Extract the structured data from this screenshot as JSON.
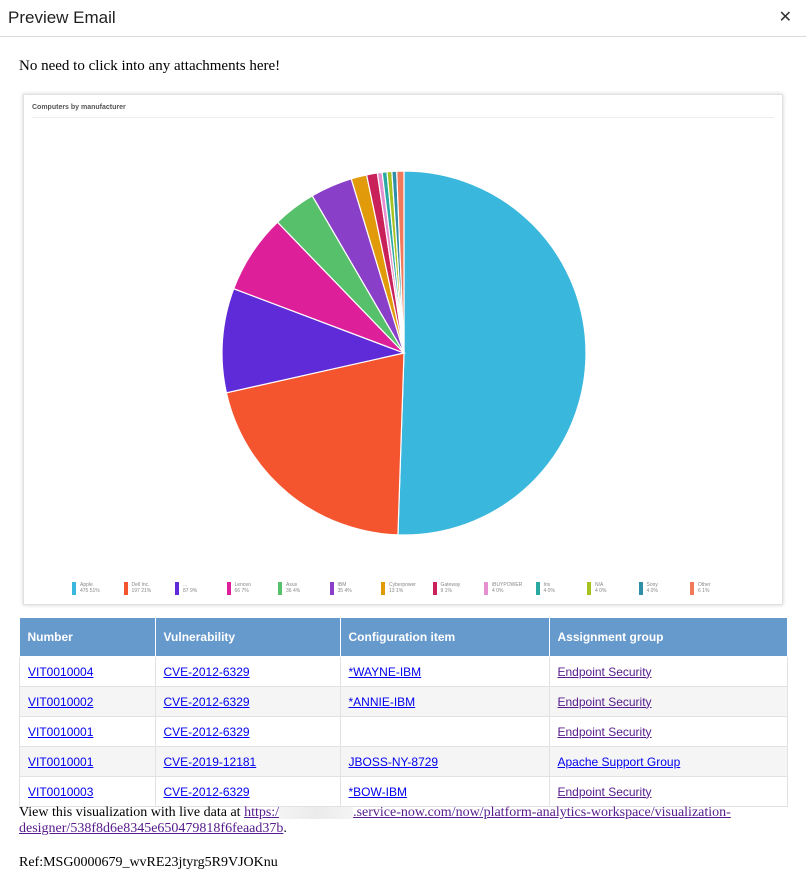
{
  "dialog": {
    "title": "Preview Email",
    "close_icon": "close-icon"
  },
  "intro_text": "No need to click into any attachments here!",
  "chart_data": {
    "type": "pie",
    "title": "Computers by manufacturer",
    "legend_position": "bottom",
    "slices": [
      {
        "name": "Apple",
        "value": 475,
        "percent": "51%",
        "color": "#3ab7dc"
      },
      {
        "name": "Dell Inc.",
        "value": 197,
        "percent": "21%",
        "color": "#f4552e"
      },
      {
        "name": "...",
        "value": 87,
        "percent": "9%",
        "color": "#5f2bd8"
      },
      {
        "name": "Lenovo",
        "value": 66,
        "percent": "7%",
        "color": "#dd1f9a"
      },
      {
        "name": "Asus",
        "value": 36,
        "percent": "4%",
        "color": "#57c06a"
      },
      {
        "name": "IBM",
        "value": 35,
        "percent": "4%",
        "color": "#8a3fc9"
      },
      {
        "name": "Cyberpower",
        "value": 13,
        "percent": "1%",
        "color": "#e09a0a"
      },
      {
        "name": "Gateway",
        "value": 9,
        "percent": "1%",
        "color": "#c9225a"
      },
      {
        "name": "iBUYPOWER",
        "value": 4,
        "percent": "0%",
        "color": "#e58fd0"
      },
      {
        "name": "Iris",
        "value": 4,
        "percent": "0%",
        "color": "#2aa8a2"
      },
      {
        "name": "N/A",
        "value": 4,
        "percent": "0%",
        "color": "#a5c21f"
      },
      {
        "name": "Sony",
        "value": 4,
        "percent": "0%",
        "color": "#2f8fa8"
      },
      {
        "name": "Other",
        "value": 6,
        "percent": "1%",
        "color": "#f07a5a"
      }
    ]
  },
  "table": {
    "headers": [
      "Number",
      "Vulnerability",
      "Configuration item",
      "Assignment group"
    ],
    "rows": [
      {
        "number": "VIT0010004",
        "vulnerability": "CVE-2012-6329",
        "ci": "*WAYNE-IBM",
        "group": "Endpoint Security"
      },
      {
        "number": "VIT0010002",
        "vulnerability": "CVE-2012-6329",
        "ci": "*ANNIE-IBM",
        "group": "Endpoint Security"
      },
      {
        "number": "VIT0010001",
        "vulnerability": "CVE-2012-6329",
        "ci": "",
        "group": "Endpoint Security"
      },
      {
        "number": "VIT0010001",
        "vulnerability": "CVE-2019-12181",
        "ci": "JBOSS-NY-8729",
        "group": "Apache Support Group"
      },
      {
        "number": "VIT0010003",
        "vulnerability": "CVE-2012-6329",
        "ci": "*BOW-IBM",
        "group": "Endpoint Security"
      }
    ]
  },
  "footer": {
    "prefix": "View this visualization with live data at ",
    "link_start": "https:/",
    "link_rest": ".service-now.com/now/platform-analytics-workspace/visualization-designer/538f8d6e8345e650479818f6feaad37b",
    "suffix": "."
  },
  "ref": "Ref:MSG0000679_wvRE23jtyrg5R9VJOKnu"
}
